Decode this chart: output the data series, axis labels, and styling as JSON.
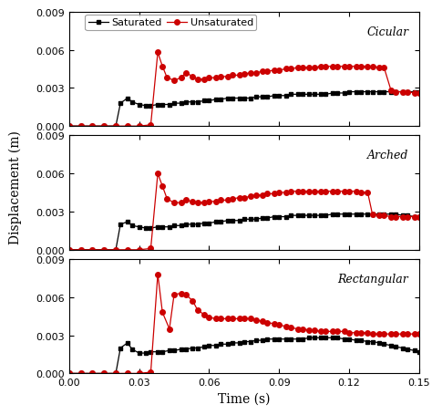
{
  "title": "",
  "xlabel": "Time (s)",
  "ylabel": "Displacement (m)",
  "xlim": [
    0.0,
    0.15
  ],
  "ylim": [
    0.0,
    0.009
  ],
  "yticks": [
    0.0,
    0.003,
    0.006,
    0.009
  ],
  "xticks": [
    0.0,
    0.03,
    0.06,
    0.09,
    0.12,
    0.15
  ],
  "panels": [
    "Cicular",
    "Arched",
    "Rectangular"
  ],
  "legend_labels": [
    "Saturated",
    "Unsaturated"
  ],
  "sat_color": "#000000",
  "unsat_color": "#cc0000",
  "background_color": "#ffffff",
  "circular_sat_x": [
    0.0,
    0.005,
    0.01,
    0.015,
    0.02,
    0.022,
    0.025,
    0.027,
    0.03,
    0.033,
    0.035,
    0.038,
    0.04,
    0.043,
    0.045,
    0.048,
    0.05,
    0.053,
    0.055,
    0.058,
    0.06,
    0.063,
    0.065,
    0.068,
    0.07,
    0.073,
    0.075,
    0.078,
    0.08,
    0.083,
    0.085,
    0.088,
    0.09,
    0.093,
    0.095,
    0.098,
    0.1,
    0.103,
    0.105,
    0.108,
    0.11,
    0.113,
    0.115,
    0.118,
    0.12,
    0.123,
    0.125,
    0.128,
    0.13,
    0.133,
    0.135,
    0.138,
    0.14,
    0.143,
    0.145,
    0.148,
    0.15
  ],
  "circular_sat_y": [
    0.0,
    0.0,
    0.0,
    0.0,
    0.0,
    0.0018,
    0.0022,
    0.0019,
    0.0017,
    0.0016,
    0.0016,
    0.0017,
    0.0017,
    0.0017,
    0.0018,
    0.0018,
    0.0019,
    0.0019,
    0.0019,
    0.002,
    0.002,
    0.0021,
    0.0021,
    0.0022,
    0.0022,
    0.0022,
    0.0022,
    0.0022,
    0.0023,
    0.0023,
    0.0023,
    0.0024,
    0.0024,
    0.0024,
    0.0025,
    0.0025,
    0.0025,
    0.0025,
    0.0025,
    0.0025,
    0.0025,
    0.0026,
    0.0026,
    0.0026,
    0.0027,
    0.0027,
    0.0027,
    0.0027,
    0.0027,
    0.0027,
    0.0027,
    0.0027,
    0.0027,
    0.0027,
    0.0027,
    0.0027,
    0.0027
  ],
  "circular_unsat_x": [
    0.0,
    0.005,
    0.01,
    0.015,
    0.02,
    0.025,
    0.03,
    0.035,
    0.038,
    0.04,
    0.042,
    0.045,
    0.048,
    0.05,
    0.053,
    0.055,
    0.058,
    0.06,
    0.063,
    0.065,
    0.068,
    0.07,
    0.073,
    0.075,
    0.078,
    0.08,
    0.083,
    0.085,
    0.088,
    0.09,
    0.093,
    0.095,
    0.098,
    0.1,
    0.103,
    0.105,
    0.108,
    0.11,
    0.113,
    0.115,
    0.118,
    0.12,
    0.123,
    0.125,
    0.128,
    0.13,
    0.133,
    0.135,
    0.138,
    0.14,
    0.143,
    0.145,
    0.148,
    0.15
  ],
  "circular_unsat_y": [
    0.0,
    0.0,
    0.0,
    0.0,
    0.0,
    0.0,
    0.0,
    0.0001,
    0.0058,
    0.0047,
    0.0038,
    0.0036,
    0.0038,
    0.0042,
    0.0039,
    0.0037,
    0.0037,
    0.0038,
    0.0038,
    0.0039,
    0.0039,
    0.004,
    0.004,
    0.0041,
    0.0042,
    0.0042,
    0.0043,
    0.0043,
    0.0044,
    0.0044,
    0.0045,
    0.0045,
    0.0046,
    0.0046,
    0.0046,
    0.0046,
    0.0047,
    0.0047,
    0.0047,
    0.0047,
    0.0047,
    0.0047,
    0.0047,
    0.0047,
    0.0047,
    0.0047,
    0.0046,
    0.0046,
    0.0028,
    0.0027,
    0.0027,
    0.0027,
    0.0026,
    0.0026
  ],
  "arched_sat_x": [
    0.0,
    0.005,
    0.01,
    0.015,
    0.02,
    0.022,
    0.025,
    0.027,
    0.03,
    0.033,
    0.035,
    0.038,
    0.04,
    0.043,
    0.045,
    0.048,
    0.05,
    0.053,
    0.055,
    0.058,
    0.06,
    0.063,
    0.065,
    0.068,
    0.07,
    0.073,
    0.075,
    0.078,
    0.08,
    0.083,
    0.085,
    0.088,
    0.09,
    0.093,
    0.095,
    0.098,
    0.1,
    0.103,
    0.105,
    0.108,
    0.11,
    0.113,
    0.115,
    0.118,
    0.12,
    0.123,
    0.125,
    0.128,
    0.13,
    0.133,
    0.135,
    0.138,
    0.14,
    0.143,
    0.145,
    0.148,
    0.15
  ],
  "arched_sat_y": [
    0.0,
    0.0,
    0.0,
    0.0,
    0.0,
    0.002,
    0.0022,
    0.0019,
    0.0018,
    0.0017,
    0.0017,
    0.0018,
    0.0018,
    0.0018,
    0.0019,
    0.0019,
    0.002,
    0.002,
    0.002,
    0.0021,
    0.0021,
    0.0022,
    0.0022,
    0.0023,
    0.0023,
    0.0023,
    0.0024,
    0.0024,
    0.0024,
    0.0025,
    0.0025,
    0.0026,
    0.0026,
    0.0026,
    0.0027,
    0.0027,
    0.0027,
    0.0027,
    0.0027,
    0.0027,
    0.0027,
    0.0028,
    0.0028,
    0.0028,
    0.0028,
    0.0028,
    0.0028,
    0.0028,
    0.0028,
    0.0028,
    0.0028,
    0.0028,
    0.0028,
    0.0027,
    0.0027,
    0.0026,
    0.0026
  ],
  "arched_unsat_x": [
    0.0,
    0.005,
    0.01,
    0.015,
    0.02,
    0.025,
    0.03,
    0.035,
    0.038,
    0.04,
    0.042,
    0.045,
    0.048,
    0.05,
    0.053,
    0.055,
    0.058,
    0.06,
    0.063,
    0.065,
    0.068,
    0.07,
    0.073,
    0.075,
    0.078,
    0.08,
    0.083,
    0.085,
    0.088,
    0.09,
    0.093,
    0.095,
    0.098,
    0.1,
    0.103,
    0.105,
    0.108,
    0.11,
    0.113,
    0.115,
    0.118,
    0.12,
    0.123,
    0.125,
    0.128,
    0.13,
    0.133,
    0.135,
    0.138,
    0.14,
    0.143,
    0.145,
    0.148,
    0.15
  ],
  "arched_unsat_y": [
    0.0,
    0.0,
    0.0,
    0.0,
    0.0,
    0.0,
    0.0,
    0.0001,
    0.006,
    0.005,
    0.004,
    0.0037,
    0.0037,
    0.0039,
    0.0038,
    0.0037,
    0.0037,
    0.0038,
    0.0038,
    0.0039,
    0.0039,
    0.004,
    0.0041,
    0.0041,
    0.0042,
    0.0043,
    0.0043,
    0.0044,
    0.0044,
    0.0045,
    0.0045,
    0.0046,
    0.0046,
    0.0046,
    0.0046,
    0.0046,
    0.0046,
    0.0046,
    0.0046,
    0.0046,
    0.0046,
    0.0046,
    0.0046,
    0.0045,
    0.0045,
    0.0028,
    0.0027,
    0.0027,
    0.0026,
    0.0026,
    0.0026,
    0.0026,
    0.0026,
    0.0026
  ],
  "rect_sat_x": [
    0.0,
    0.005,
    0.01,
    0.015,
    0.02,
    0.022,
    0.025,
    0.027,
    0.03,
    0.033,
    0.035,
    0.038,
    0.04,
    0.043,
    0.045,
    0.048,
    0.05,
    0.053,
    0.055,
    0.058,
    0.06,
    0.063,
    0.065,
    0.068,
    0.07,
    0.073,
    0.075,
    0.078,
    0.08,
    0.083,
    0.085,
    0.088,
    0.09,
    0.093,
    0.095,
    0.098,
    0.1,
    0.103,
    0.105,
    0.108,
    0.11,
    0.113,
    0.115,
    0.118,
    0.12,
    0.123,
    0.125,
    0.128,
    0.13,
    0.133,
    0.135,
    0.138,
    0.14,
    0.143,
    0.145,
    0.148,
    0.15
  ],
  "rect_sat_y": [
    0.0,
    0.0,
    0.0,
    0.0,
    0.0,
    0.002,
    0.0024,
    0.0019,
    0.0016,
    0.0016,
    0.0017,
    0.0017,
    0.0017,
    0.0018,
    0.0018,
    0.0019,
    0.0019,
    0.002,
    0.002,
    0.0021,
    0.0022,
    0.0022,
    0.0023,
    0.0023,
    0.0024,
    0.0024,
    0.0025,
    0.0025,
    0.0026,
    0.0026,
    0.0027,
    0.0027,
    0.0027,
    0.0027,
    0.0027,
    0.0027,
    0.0027,
    0.0028,
    0.0028,
    0.0028,
    0.0028,
    0.0028,
    0.0028,
    0.0027,
    0.0027,
    0.0026,
    0.0026,
    0.0025,
    0.0025,
    0.0024,
    0.0023,
    0.0022,
    0.0021,
    0.002,
    0.0019,
    0.0018,
    0.0017
  ],
  "rect_unsat_x": [
    0.0,
    0.005,
    0.01,
    0.015,
    0.02,
    0.025,
    0.03,
    0.035,
    0.038,
    0.04,
    0.043,
    0.045,
    0.048,
    0.05,
    0.053,
    0.055,
    0.058,
    0.06,
    0.063,
    0.065,
    0.068,
    0.07,
    0.073,
    0.075,
    0.078,
    0.08,
    0.083,
    0.085,
    0.088,
    0.09,
    0.093,
    0.095,
    0.098,
    0.1,
    0.103,
    0.105,
    0.108,
    0.11,
    0.113,
    0.115,
    0.118,
    0.12,
    0.123,
    0.125,
    0.128,
    0.13,
    0.133,
    0.135,
    0.138,
    0.14,
    0.143,
    0.145,
    0.148,
    0.15
  ],
  "rect_unsat_y": [
    0.0,
    0.0,
    0.0,
    0.0,
    0.0,
    0.0,
    0.0,
    0.0001,
    0.0078,
    0.0048,
    0.0035,
    0.0062,
    0.0063,
    0.0062,
    0.0057,
    0.005,
    0.0046,
    0.0044,
    0.0043,
    0.0043,
    0.0043,
    0.0043,
    0.0043,
    0.0043,
    0.0043,
    0.0042,
    0.0041,
    0.004,
    0.0039,
    0.0038,
    0.0037,
    0.0036,
    0.0035,
    0.0035,
    0.0034,
    0.0034,
    0.0033,
    0.0033,
    0.0033,
    0.0033,
    0.0033,
    0.0032,
    0.0032,
    0.0032,
    0.0032,
    0.0031,
    0.0031,
    0.0031,
    0.0031,
    0.0031,
    0.0031,
    0.0031,
    0.0031,
    0.0031
  ]
}
